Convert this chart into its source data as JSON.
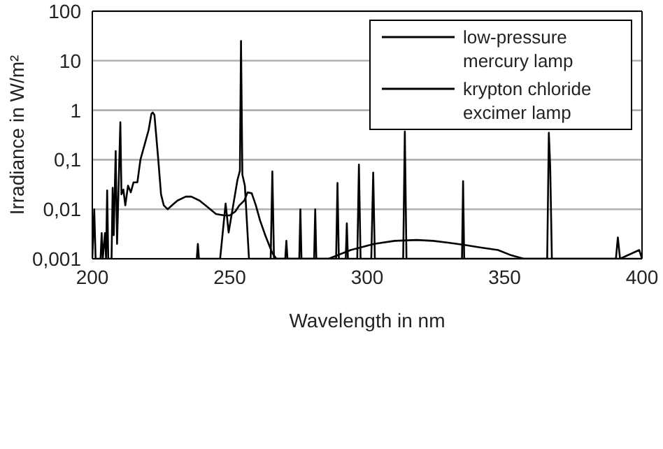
{
  "chart_data": {
    "type": "line",
    "xlabel": "Wavelength in nm",
    "ylabel": "Irradiance in W/m²",
    "xlim": [
      200,
      400
    ],
    "xticks": [
      200,
      250,
      300,
      350,
      400
    ],
    "ylim": [
      0.001,
      100
    ],
    "log": "y",
    "yticks": [
      {
        "value": 0.001,
        "label": "0,001"
      },
      {
        "value": 0.01,
        "label": "0,01"
      },
      {
        "value": 0.1,
        "label": "0,1"
      },
      {
        "value": 1,
        "label": "1"
      },
      {
        "value": 10,
        "label": "10"
      },
      {
        "value": 100,
        "label": "100"
      }
    ],
    "grid": "y",
    "legend": "top right",
    "line_style": "solid",
    "marker": "none",
    "series": [
      {
        "name": "low-pressure mercury lamp",
        "color": "#000000",
        "x": [
          238.0,
          238.4,
          238.8,
          246.5,
          248.5,
          249.6,
          252.8,
          253.7,
          254.1,
          254.6,
          255.5,
          257,
          264.9,
          265.5,
          266.1,
          270.2,
          270.6,
          271,
          275.3,
          275.7,
          276.1,
          280.7,
          281.1,
          281.5,
          288.7,
          289.2,
          289.7,
          292.2,
          292.6,
          293,
          296.4,
          297,
          297.6,
          301.5,
          302.2,
          302.8,
          313.1,
          313.7,
          314.3,
          334.5,
          334.9,
          335.3,
          365.5,
          366.1,
          366.6,
          367.2,
          390.5,
          391.2,
          392,
          399,
          400
        ],
        "values": [
          0.001,
          0.002,
          0.001,
          0.001,
          0.013,
          0.0034,
          0.039,
          0.06,
          25,
          0.05,
          0.03,
          0.001,
          0.001,
          0.058,
          0.001,
          0.001,
          0.0023,
          0.001,
          0.001,
          0.01,
          0.001,
          0.001,
          0.01,
          0.001,
          0.001,
          0.034,
          0.001,
          0.001,
          0.0052,
          0.001,
          0.001,
          0.08,
          0.001,
          0.001,
          0.055,
          0.001,
          0.001,
          0.37,
          0.001,
          0.001,
          0.037,
          0.001,
          0.001,
          0.35,
          0.07,
          0.001,
          0.001,
          0.0027,
          0.001,
          0.0015,
          0.001
        ]
      },
      {
        "name": "krypton chloride excimer lamp",
        "color": "#000000",
        "x": [
          200,
          200.7,
          201.2,
          203,
          203.4,
          203.8,
          204.6,
          205,
          205.4,
          205.8,
          207,
          207.4,
          207.8,
          208.5,
          209,
          210.2,
          210.6,
          211.3,
          212,
          213,
          214,
          215,
          216.4,
          217.5,
          219,
          220.5,
          221.5,
          222,
          222.6,
          224,
          225,
          226,
          227.4,
          229,
          231,
          234,
          236,
          239,
          242,
          245,
          248,
          250,
          252,
          253.5,
          255.3,
          256.5,
          258,
          259.5,
          261,
          263,
          265.5,
          267,
          286,
          294,
          302.5,
          310,
          318,
          324,
          330,
          335.5,
          341,
          347.6,
          352,
          357,
          400
        ],
        "values": [
          0.001,
          0.01,
          0.001,
          0.001,
          0.0033,
          0.001,
          0.0033,
          0.001,
          0.024,
          0.001,
          0.001,
          0.027,
          0.003,
          0.15,
          0.002,
          0.57,
          0.02,
          0.025,
          0.012,
          0.03,
          0.022,
          0.035,
          0.035,
          0.1,
          0.2,
          0.4,
          0.85,
          0.9,
          0.8,
          0.1,
          0.02,
          0.012,
          0.01,
          0.012,
          0.015,
          0.018,
          0.018,
          0.015,
          0.011,
          0.008,
          0.0075,
          0.0075,
          0.009,
          0.012,
          0.015,
          0.022,
          0.021,
          0.012,
          0.006,
          0.0029,
          0.0013,
          0.001,
          0.001,
          0.0015,
          0.002,
          0.0023,
          0.0024,
          0.0023,
          0.0021,
          0.0019,
          0.0017,
          0.0015,
          0.0012,
          0.001,
          0.001
        ]
      }
    ]
  }
}
